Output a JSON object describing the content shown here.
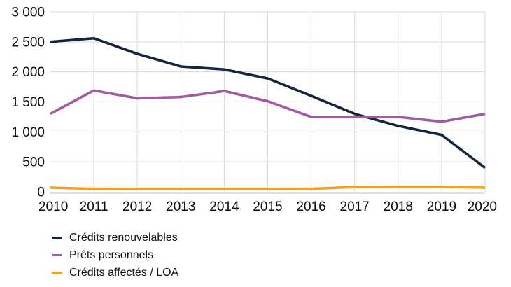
{
  "chart_data": {
    "type": "line",
    "title": "",
    "xlabel": "",
    "ylabel": "",
    "x_labels": [
      "2010",
      "2011",
      "2012",
      "2013",
      "2014",
      "2015",
      "2016",
      "2017",
      "2018",
      "2019",
      "2020"
    ],
    "ylim": [
      0,
      3000
    ],
    "grid": true,
    "legend_position": "bottom-left",
    "y_ticks": [
      {
        "value": 0,
        "label": "0"
      },
      {
        "value": 500,
        "label": "500"
      },
      {
        "value": 1000,
        "label": "1 000"
      },
      {
        "value": 1500,
        "label": "1 500"
      },
      {
        "value": 2000,
        "label": "2 000"
      },
      {
        "value": 2500,
        "label": "2 500"
      },
      {
        "value": 3000,
        "label": "3 000"
      }
    ],
    "series": [
      {
        "name": "Crédits renouvelables",
        "color": "#14263e",
        "values": [
          2500,
          2560,
          2300,
          2090,
          2040,
          1890,
          1600,
          1300,
          1100,
          950,
          400
        ]
      },
      {
        "name": "Prêts personnels",
        "color": "#a25aa2",
        "values": [
          1300,
          1690,
          1560,
          1580,
          1680,
          1510,
          1250,
          1250,
          1250,
          1170,
          1300
        ]
      },
      {
        "name": "Crédits affectés / LOA",
        "color": "#f5a01e",
        "values": [
          70,
          50,
          45,
          45,
          45,
          45,
          50,
          80,
          85,
          85,
          70
        ]
      }
    ]
  },
  "colors": {
    "gridline": "#d9d9d9",
    "axis_line": "#8c8c8c",
    "tick_text": "#0d0d0d"
  }
}
